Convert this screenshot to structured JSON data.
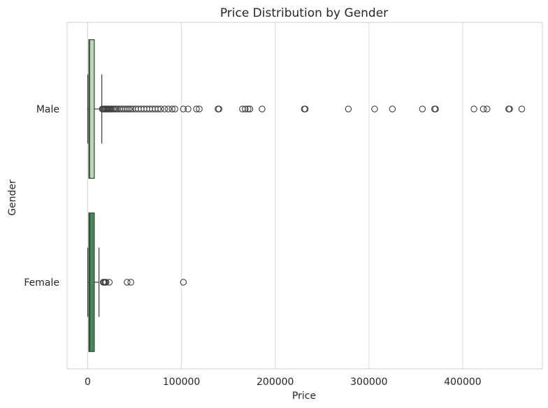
{
  "chart_data": {
    "type": "boxplot",
    "orientation": "horizontal",
    "title": "Price Distribution by Gender",
    "xlabel": "Price",
    "ylabel": "Gender",
    "xlim": [
      -22000,
      485000
    ],
    "xticks": [
      0,
      100000,
      200000,
      300000,
      400000
    ],
    "xtick_labels": [
      "0",
      "100000",
      "200000",
      "300000",
      "400000"
    ],
    "grid": "vertical",
    "categories": [
      "Male",
      "Female"
    ],
    "series": [
      {
        "category": "Male",
        "color": "#b5d9b0",
        "whisker_low": 0,
        "q1": 1200,
        "median": 2000,
        "q3": 7000,
        "whisker_high": 15000,
        "outliers": [
          15500,
          16500,
          17500,
          18500,
          19500,
          20500,
          21500,
          22500,
          23500,
          24500,
          26000,
          27500,
          29000,
          30500,
          32000,
          34000,
          36000,
          38000,
          40000,
          42000,
          44000,
          46000,
          48000,
          51000,
          54000,
          57000,
          60000,
          63000,
          66000,
          69000,
          72000,
          75000,
          78000,
          82000,
          86000,
          90000,
          93000,
          102000,
          107000,
          116000,
          119000,
          139000,
          140000,
          165000,
          168000,
          171000,
          173000,
          186000,
          231000,
          232000,
          278000,
          306000,
          325000,
          357000,
          370000,
          371000,
          412000,
          422000,
          426000,
          449000,
          450000,
          463000
        ]
      },
      {
        "category": "Female",
        "color": "#3f8f55",
        "whisker_low": 0,
        "q1": 1200,
        "median": 2200,
        "q3": 7000,
        "whisker_high": 12000,
        "outliers": [
          16500,
          17500,
          18500,
          19500,
          23000,
          42000,
          46000,
          102000
        ]
      }
    ]
  }
}
